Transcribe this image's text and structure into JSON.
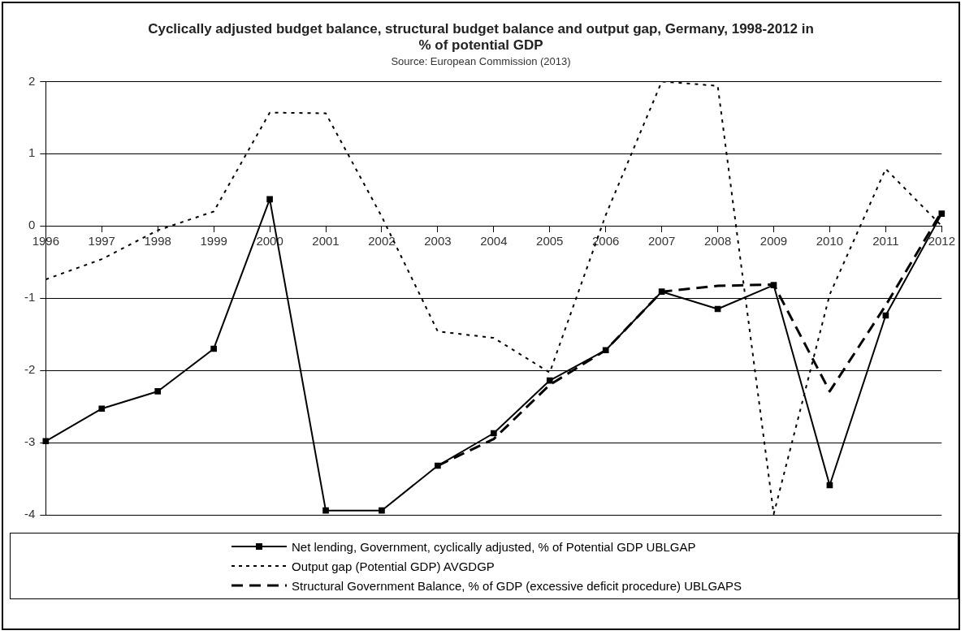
{
  "chart_data": {
    "type": "line",
    "title": "Cyclically adjusted budget balance, structural budget balance and output gap, Germany, 1998-2012 in % of potential GDP",
    "annotations": [
      "Source: European Commission (2013)"
    ],
    "categories": [
      "1996",
      "1997",
      "1998",
      "1999",
      "2000",
      "2001",
      "2002",
      "2003",
      "2004",
      "2005",
      "2006",
      "2007",
      "2008",
      "2009",
      "2010",
      "2011",
      "2012"
    ],
    "ylim": [
      -4,
      2
    ],
    "yticks": [
      -4,
      -3,
      -2,
      -1,
      0,
      1,
      2
    ],
    "grid": "y",
    "legend": "bottom",
    "series": [
      {
        "name": "Net lending, Government, cyclically adjusted, % of Potential GDP UBLGAP",
        "color": "#000000",
        "marker": "square",
        "line_style": "solid",
        "values": [
          -2.98,
          -2.53,
          -2.29,
          -1.7,
          0.37,
          -3.94,
          -3.94,
          -3.32,
          -2.87,
          -2.14,
          -1.72,
          -0.91,
          -1.15,
          -0.82,
          -3.59,
          -1.24,
          0.17
        ]
      },
      {
        "name": "Output gap (Potential GDP) AVGDGP",
        "color": "#000000",
        "marker": "none",
        "line_style": "dotted",
        "values": [
          -0.74,
          -0.46,
          -0.06,
          0.2,
          1.57,
          1.56,
          0.13,
          -1.46,
          -1.55,
          -2.03,
          0.15,
          2,
          1.94,
          -3.99,
          -0.95,
          0.79,
          0
        ]
      },
      {
        "name": "Structural Government Balance, % of GDP (excessive deficit procedure) UBLGAPS",
        "color": "#000000",
        "marker": "none",
        "line_style": "dashed",
        "values": [
          null,
          null,
          null,
          null,
          null,
          null,
          null,
          -3.32,
          -2.95,
          -2.2,
          -1.72,
          -0.91,
          -0.83,
          -0.81,
          -2.29,
          -1.1,
          0.2
        ]
      }
    ]
  }
}
